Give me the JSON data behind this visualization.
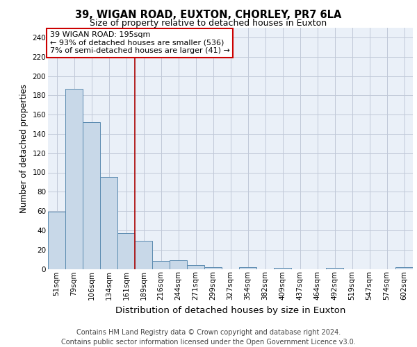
{
  "title1": "39, WIGAN ROAD, EUXTON, CHORLEY, PR7 6LA",
  "title2": "Size of property relative to detached houses in Euxton",
  "xlabel": "Distribution of detached houses by size in Euxton",
  "ylabel": "Number of detached properties",
  "categories": [
    "51sqm",
    "79sqm",
    "106sqm",
    "134sqm",
    "161sqm",
    "189sqm",
    "216sqm",
    "244sqm",
    "271sqm",
    "299sqm",
    "327sqm",
    "354sqm",
    "382sqm",
    "409sqm",
    "437sqm",
    "464sqm",
    "492sqm",
    "519sqm",
    "547sqm",
    "574sqm",
    "602sqm"
  ],
  "values": [
    59,
    187,
    152,
    95,
    37,
    29,
    8,
    9,
    4,
    2,
    0,
    2,
    0,
    1,
    0,
    0,
    1,
    0,
    0,
    0,
    2
  ],
  "bar_color": "#c8d8e8",
  "bar_edge_color": "#5a8ab0",
  "bar_linewidth": 0.7,
  "vline_index": 4.5,
  "vline_color": "#aa0000",
  "vline_linewidth": 1.2,
  "annotation_text": "39 WIGAN ROAD: 195sqm\n← 93% of detached houses are smaller (536)\n7% of semi-detached houses are larger (41) →",
  "annotation_box_color": "#cc0000",
  "ylim": [
    0,
    250
  ],
  "yticks": [
    0,
    20,
    40,
    60,
    80,
    100,
    120,
    140,
    160,
    180,
    200,
    220,
    240
  ],
  "grid_color": "#c0c8d8",
  "background_color": "#eaf0f8",
  "footer_text": "Contains HM Land Registry data © Crown copyright and database right 2024.\nContains public sector information licensed under the Open Government Licence v3.0.",
  "title1_fontsize": 10.5,
  "title2_fontsize": 9,
  "xlabel_fontsize": 9.5,
  "ylabel_fontsize": 8.5,
  "tick_fontsize": 7.5,
  "footer_fontsize": 7,
  "ann_fontsize": 8
}
